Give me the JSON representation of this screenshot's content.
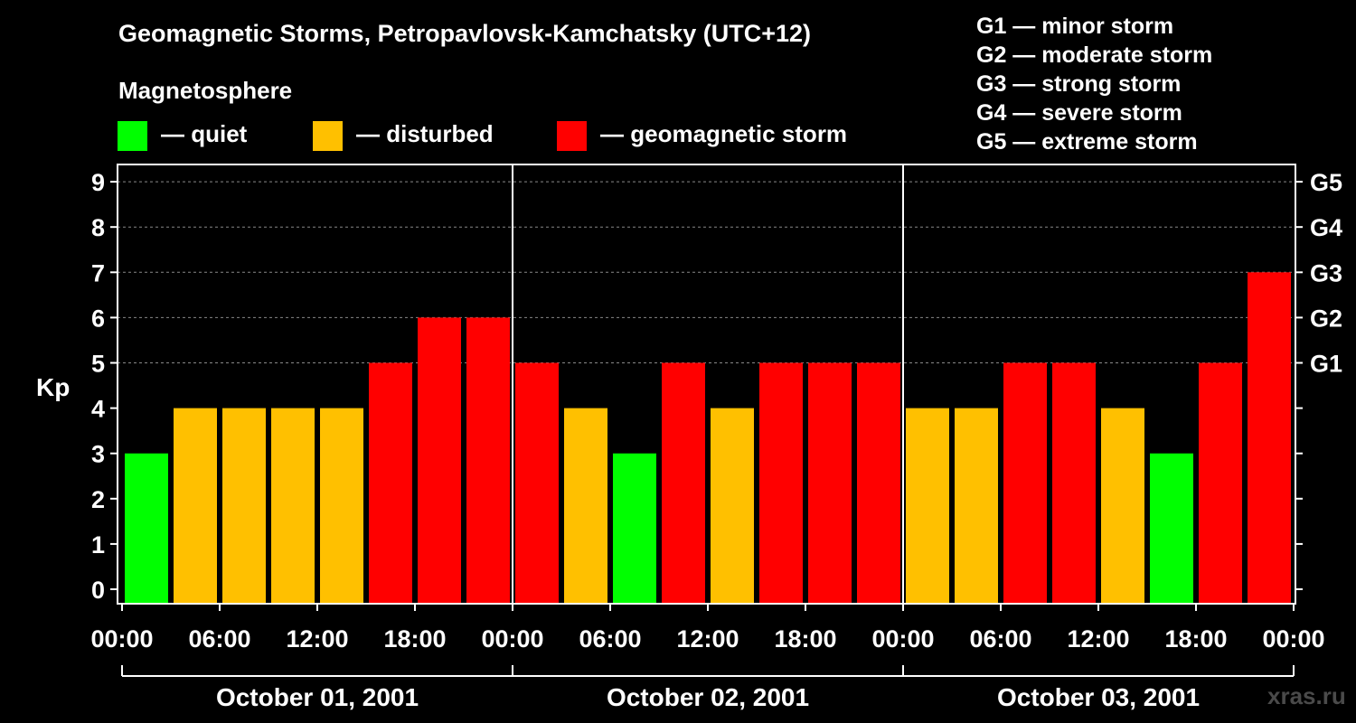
{
  "header": {
    "title": "Geomagnetic Storms, Petropavlovsk-Kamchatsky (UTC+12)",
    "magnetosphere_label": "Magnetosphere",
    "legend": [
      {
        "label": "— quiet",
        "color": "#00ff00"
      },
      {
        "label": "— disturbed",
        "color": "#ffc000"
      },
      {
        "label": "— geomagnetic storm",
        "color": "#ff0000"
      }
    ],
    "g_scale": [
      "G1 — minor storm",
      "G2 — moderate storm",
      "G3 — strong storm",
      "G4 — severe storm",
      "G5 — extreme storm"
    ]
  },
  "watermark": "xras.ru",
  "chart_data": {
    "type": "bar",
    "ylabel": "Kp",
    "ylim": [
      0,
      9
    ],
    "yticks": [
      "0",
      "1",
      "2",
      "3",
      "4",
      "5",
      "6",
      "7",
      "8",
      "9"
    ],
    "right_ticks": [
      {
        "kp": 5,
        "label": "G1"
      },
      {
        "kp": 6,
        "label": "G2"
      },
      {
        "kp": 7,
        "label": "G3"
      },
      {
        "kp": 8,
        "label": "G4"
      },
      {
        "kp": 9,
        "label": "G5"
      }
    ],
    "xtick_labels": [
      "00:00",
      "06:00",
      "12:00",
      "18:00",
      "00:00",
      "06:00",
      "12:00",
      "18:00",
      "00:00",
      "06:00",
      "12:00",
      "18:00",
      "00:00"
    ],
    "days": [
      "October 01, 2001",
      "October 02, 2001",
      "October 03, 2001"
    ],
    "bars_per_day": 8,
    "values": [
      3,
      4,
      4,
      4,
      4,
      5,
      6,
      6,
      5,
      4,
      3,
      5,
      4,
      5,
      5,
      5,
      4,
      4,
      5,
      5,
      4,
      3,
      5,
      7
    ],
    "colors": {
      "quiet": "#00ff00",
      "disturbed": "#ffc000",
      "storm": "#ff0000"
    },
    "gridlines": true
  }
}
